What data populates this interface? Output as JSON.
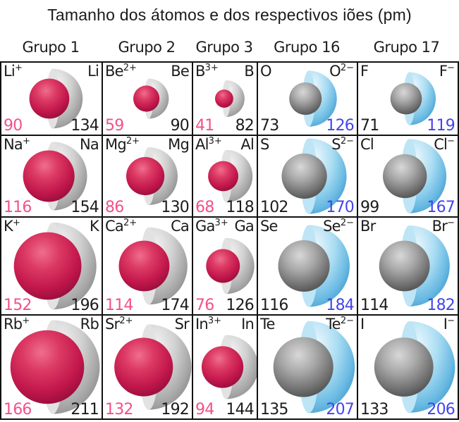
{
  "title": "Tamanho dos átomos e dos respectivos iões (pm)",
  "unit": "pm",
  "columns": [
    "Grupo 1",
    "Grupo 2",
    "Grupo 3",
    "Grupo 16",
    "Grupo 17"
  ],
  "colors": {
    "cation_radius_text": "#f2518c",
    "anion_radius_text": "#4444ee",
    "atom_radius_text": "#1c1c1c",
    "label_text": "#1c1c1c",
    "cation_sphere": "#c2174c",
    "anion_sphere": "#5ab4e0",
    "cation_atom_cup": "#b0b0b0",
    "anion_atom_sphere": "#808080",
    "grid_line": "#111111"
  },
  "cells": [
    {
      "group": "Grupo 1",
      "kind": "cation",
      "ion": {
        "symbol": "Li",
        "charge": "+",
        "radius_pm": 90
      },
      "atom": {
        "symbol": "Li",
        "radius_pm": 134
      }
    },
    {
      "group": "Grupo 2",
      "kind": "cation",
      "ion": {
        "symbol": "Be",
        "charge": "2+",
        "radius_pm": 59
      },
      "atom": {
        "symbol": "Be",
        "radius_pm": 90
      }
    },
    {
      "group": "Grupo 3",
      "kind": "cation",
      "ion": {
        "symbol": "B",
        "charge": "3+",
        "radius_pm": 41
      },
      "atom": {
        "symbol": "B",
        "radius_pm": 82
      }
    },
    {
      "group": "Grupo 16",
      "kind": "anion",
      "ion": {
        "symbol": "O",
        "charge": "2−",
        "radius_pm": 126
      },
      "atom": {
        "symbol": "O",
        "radius_pm": 73
      }
    },
    {
      "group": "Grupo 17",
      "kind": "anion",
      "ion": {
        "symbol": "F",
        "charge": "−",
        "radius_pm": 119
      },
      "atom": {
        "symbol": "F",
        "radius_pm": 71
      }
    },
    {
      "group": "Grupo 1",
      "kind": "cation",
      "ion": {
        "symbol": "Na",
        "charge": "+",
        "radius_pm": 116
      },
      "atom": {
        "symbol": "Na",
        "radius_pm": 154
      }
    },
    {
      "group": "Grupo 2",
      "kind": "cation",
      "ion": {
        "symbol": "Mg",
        "charge": "2+",
        "radius_pm": 86
      },
      "atom": {
        "symbol": "Mg",
        "radius_pm": 130
      }
    },
    {
      "group": "Grupo 3",
      "kind": "cation",
      "ion": {
        "symbol": "Al",
        "charge": "3+",
        "radius_pm": 68
      },
      "atom": {
        "symbol": "Al",
        "radius_pm": 118
      }
    },
    {
      "group": "Grupo 16",
      "kind": "anion",
      "ion": {
        "symbol": "S",
        "charge": "2−",
        "radius_pm": 170
      },
      "atom": {
        "symbol": "S",
        "radius_pm": 102
      }
    },
    {
      "group": "Grupo 17",
      "kind": "anion",
      "ion": {
        "symbol": "Cl",
        "charge": "−",
        "radius_pm": 167
      },
      "atom": {
        "symbol": "Cl",
        "radius_pm": 99
      }
    },
    {
      "group": "Grupo 1",
      "kind": "cation",
      "ion": {
        "symbol": "K",
        "charge": "+",
        "radius_pm": 152
      },
      "atom": {
        "symbol": "K",
        "radius_pm": 196
      }
    },
    {
      "group": "Grupo 2",
      "kind": "cation",
      "ion": {
        "symbol": "Ca",
        "charge": "2+",
        "radius_pm": 114
      },
      "atom": {
        "symbol": "Ca",
        "radius_pm": 174
      }
    },
    {
      "group": "Grupo 3",
      "kind": "cation",
      "ion": {
        "symbol": "Ga",
        "charge": "3+",
        "radius_pm": 76
      },
      "atom": {
        "symbol": "Ga",
        "radius_pm": 126
      }
    },
    {
      "group": "Grupo 16",
      "kind": "anion",
      "ion": {
        "symbol": "Se",
        "charge": "2−",
        "radius_pm": 184
      },
      "atom": {
        "symbol": "Se",
        "radius_pm": 116
      }
    },
    {
      "group": "Grupo 17",
      "kind": "anion",
      "ion": {
        "symbol": "Br",
        "charge": "−",
        "radius_pm": 182
      },
      "atom": {
        "symbol": "Br",
        "radius_pm": 114
      }
    },
    {
      "group": "Grupo 1",
      "kind": "cation",
      "ion": {
        "symbol": "Rb",
        "charge": "+",
        "radius_pm": 166
      },
      "atom": {
        "symbol": "Rb",
        "radius_pm": 211
      }
    },
    {
      "group": "Grupo 2",
      "kind": "cation",
      "ion": {
        "symbol": "Sr",
        "charge": "2+",
        "radius_pm": 132
      },
      "atom": {
        "symbol": "Sr",
        "radius_pm": 192
      }
    },
    {
      "group": "Grupo 3",
      "kind": "cation",
      "ion": {
        "symbol": "In",
        "charge": "3+",
        "radius_pm": 94
      },
      "atom": {
        "symbol": "In",
        "radius_pm": 144
      }
    },
    {
      "group": "Grupo 16",
      "kind": "anion",
      "ion": {
        "symbol": "Te",
        "charge": "2−",
        "radius_pm": 207
      },
      "atom": {
        "symbol": "Te",
        "radius_pm": 135
      }
    },
    {
      "group": "Grupo 17",
      "kind": "anion",
      "ion": {
        "symbol": "I",
        "charge": "−",
        "radius_pm": 206
      },
      "atom": {
        "symbol": "I",
        "radius_pm": 133
      }
    }
  ]
}
